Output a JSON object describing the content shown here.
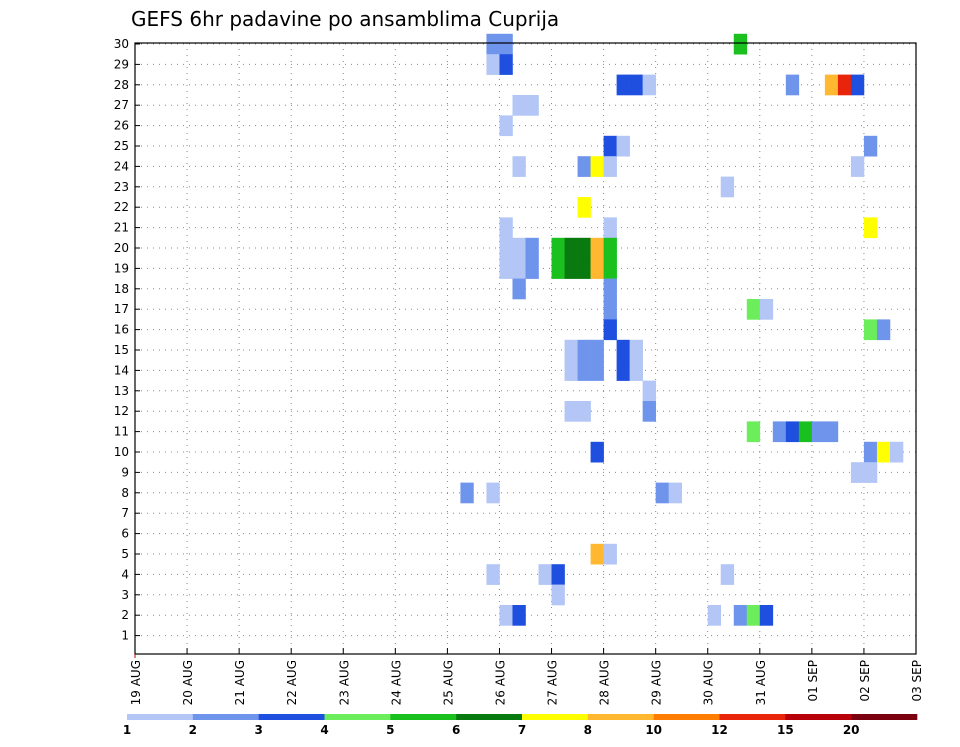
{
  "chart_data": {
    "type": "heatmap",
    "title": "GEFS 6hr padavine po ansamblima Cuprija",
    "xlabel": "",
    "ylabel": "",
    "x_tick_labels": [
      "19 AUG",
      "20 AUG",
      "21 AUG",
      "22 AUG",
      "23 AUG",
      "24 AUG",
      "25 AUG",
      "26 AUG",
      "27 AUG",
      "28 AUG",
      "29 AUG",
      "30 AUG",
      "31 AUG",
      "01 SEP",
      "02 SEP",
      "03 SEP"
    ],
    "y_tick_labels": [
      "1",
      "2",
      "3",
      "4",
      "5",
      "6",
      "7",
      "8",
      "9",
      "10",
      "11",
      "12",
      "13",
      "14",
      "15",
      "16",
      "17",
      "18",
      "19",
      "20",
      "21",
      "22",
      "23",
      "24",
      "25",
      "26",
      "27",
      "28",
      "29",
      "30"
    ],
    "x_range_days": [
      0,
      15
    ],
    "y_range": [
      0.5,
      30.5
    ],
    "time_step_days": 0.25,
    "grid": true,
    "color_scale": {
      "labels": [
        "1",
        "2",
        "3",
        "4",
        "5",
        "6",
        "7",
        "8",
        "10",
        "12",
        "15",
        "20"
      ],
      "colors": [
        "#b3c6f5",
        "#6f94ec",
        "#1f4fdf",
        "#6ced5b",
        "#19c01e",
        "#087a10",
        "#ffff00",
        "#ffb830",
        "#ff7d00",
        "#e8250b",
        "#b8000b",
        "#7a0010"
      ]
    },
    "cells": [
      {
        "day": "25.75",
        "member": 30,
        "color": "#6f94ec"
      },
      {
        "day": "26.00",
        "member": 30,
        "color": "#6f94ec"
      },
      {
        "day": "30.50",
        "member": 30,
        "color": "#19c01e"
      },
      {
        "day": "25.75",
        "member": 29,
        "color": "#b3c6f5"
      },
      {
        "day": "26.00",
        "member": 29,
        "color": "#1f4fdf"
      },
      {
        "day": "28.25",
        "member": 28,
        "color": "#1f4fdf"
      },
      {
        "day": "28.50",
        "member": 28,
        "color": "#1f4fdf"
      },
      {
        "day": "28.75",
        "member": 28,
        "color": "#b3c6f5"
      },
      {
        "day": "31.50",
        "member": 28,
        "color": "#6f94ec"
      },
      {
        "day": "32.25",
        "member": 28,
        "color": "#ffb830"
      },
      {
        "day": "32.50",
        "member": 28,
        "color": "#e8250b"
      },
      {
        "day": "32.75",
        "member": 28,
        "color": "#1f4fdf"
      },
      {
        "day": "26.25",
        "member": 27,
        "color": "#b3c6f5"
      },
      {
        "day": "26.50",
        "member": 27,
        "color": "#b3c6f5"
      },
      {
        "day": "26.00",
        "member": 26,
        "color": "#b3c6f5"
      },
      {
        "day": "28.00",
        "member": 25,
        "color": "#1f4fdf"
      },
      {
        "day": "28.25",
        "member": 25,
        "color": "#b3c6f5"
      },
      {
        "day": "33.00",
        "member": 25,
        "color": "#6f94ec"
      },
      {
        "day": "26.25",
        "member": 24,
        "color": "#b3c6f5"
      },
      {
        "day": "27.50",
        "member": 24,
        "color": "#6f94ec"
      },
      {
        "day": "27.75",
        "member": 24,
        "color": "#ffff00"
      },
      {
        "day": "28.00",
        "member": 24,
        "color": "#b3c6f5"
      },
      {
        "day": "32.75",
        "member": 24,
        "color": "#b3c6f5"
      },
      {
        "day": "30.25",
        "member": 23,
        "color": "#b3c6f5"
      },
      {
        "day": "27.50",
        "member": 22,
        "color": "#ffff00"
      },
      {
        "day": "26.00",
        "member": 21,
        "color": "#b3c6f5"
      },
      {
        "day": "28.00",
        "member": 21,
        "color": "#b3c6f5"
      },
      {
        "day": "33.00",
        "member": 21,
        "color": "#ffff00"
      },
      {
        "day": "26.00",
        "member": 20,
        "color": "#b3c6f5"
      },
      {
        "day": "26.25",
        "member": 20,
        "color": "#b3c6f5"
      },
      {
        "day": "26.50",
        "member": 20,
        "color": "#6f94ec"
      },
      {
        "day": "27.00",
        "member": 20,
        "color": "#19c01e"
      },
      {
        "day": "27.25",
        "member": 20,
        "color": "#087a10"
      },
      {
        "day": "27.50",
        "member": 20,
        "color": "#087a10"
      },
      {
        "day": "27.75",
        "member": 20,
        "color": "#ffb830"
      },
      {
        "day": "28.00",
        "member": 20,
        "color": "#19c01e"
      },
      {
        "day": "26.00",
        "member": 19,
        "color": "#b3c6f5"
      },
      {
        "day": "26.25",
        "member": 19,
        "color": "#b3c6f5"
      },
      {
        "day": "26.50",
        "member": 19,
        "color": "#6f94ec"
      },
      {
        "day": "27.00",
        "member": 19,
        "color": "#19c01e"
      },
      {
        "day": "27.25",
        "member": 19,
        "color": "#087a10"
      },
      {
        "day": "27.50",
        "member": 19,
        "color": "#087a10"
      },
      {
        "day": "27.75",
        "member": 19,
        "color": "#ffb830"
      },
      {
        "day": "28.00",
        "member": 19,
        "color": "#19c01e"
      },
      {
        "day": "26.25",
        "member": 18,
        "color": "#6f94ec"
      },
      {
        "day": "28.00",
        "member": 18,
        "color": "#6f94ec"
      },
      {
        "day": "28.00",
        "member": 17,
        "color": "#6f94ec"
      },
      {
        "day": "30.75",
        "member": 17,
        "color": "#6ced5b"
      },
      {
        "day": "31.00",
        "member": 17,
        "color": "#b3c6f5"
      },
      {
        "day": "28.00",
        "member": 16,
        "color": "#1f4fdf"
      },
      {
        "day": "33.00",
        "member": 16,
        "color": "#6ced5b"
      },
      {
        "day": "33.25",
        "member": 16,
        "color": "#6f94ec"
      },
      {
        "day": "27.25",
        "member": 15,
        "color": "#b3c6f5"
      },
      {
        "day": "27.50",
        "member": 15,
        "color": "#6f94ec"
      },
      {
        "day": "27.75",
        "member": 15,
        "color": "#6f94ec"
      },
      {
        "day": "28.25",
        "member": 15,
        "color": "#1f4fdf"
      },
      {
        "day": "28.50",
        "member": 15,
        "color": "#b3c6f5"
      },
      {
        "day": "27.25",
        "member": 14,
        "color": "#b3c6f5"
      },
      {
        "day": "27.50",
        "member": 14,
        "color": "#6f94ec"
      },
      {
        "day": "27.75",
        "member": 14,
        "color": "#6f94ec"
      },
      {
        "day": "28.25",
        "member": 14,
        "color": "#1f4fdf"
      },
      {
        "day": "28.50",
        "member": 14,
        "color": "#b3c6f5"
      },
      {
        "day": "28.75",
        "member": 13,
        "color": "#b3c6f5"
      },
      {
        "day": "27.25",
        "member": 12,
        "color": "#b3c6f5"
      },
      {
        "day": "27.50",
        "member": 12,
        "color": "#b3c6f5"
      },
      {
        "day": "28.75",
        "member": 12,
        "color": "#6f94ec"
      },
      {
        "day": "30.75",
        "member": 11,
        "color": "#6ced5b"
      },
      {
        "day": "31.25",
        "member": 11,
        "color": "#6f94ec"
      },
      {
        "day": "31.50",
        "member": 11,
        "color": "#1f4fdf"
      },
      {
        "day": "31.75",
        "member": 11,
        "color": "#19c01e"
      },
      {
        "day": "32.00",
        "member": 11,
        "color": "#6f94ec"
      },
      {
        "day": "32.25",
        "member": 11,
        "color": "#6f94ec"
      },
      {
        "day": "27.75",
        "member": 10,
        "color": "#1f4fdf"
      },
      {
        "day": "33.00",
        "member": 10,
        "color": "#6f94ec"
      },
      {
        "day": "33.25",
        "member": 10,
        "color": "#ffff00"
      },
      {
        "day": "33.50",
        "member": 10,
        "color": "#b3c6f5"
      },
      {
        "day": "32.75",
        "member": 9,
        "color": "#b3c6f5"
      },
      {
        "day": "33.00",
        "member": 9,
        "color": "#b3c6f5"
      },
      {
        "day": "25.25",
        "member": 8,
        "color": "#6f94ec"
      },
      {
        "day": "25.75",
        "member": 8,
        "color": "#b3c6f5"
      },
      {
        "day": "29.00",
        "member": 8,
        "color": "#6f94ec"
      },
      {
        "day": "29.25",
        "member": 8,
        "color": "#b3c6f5"
      },
      {
        "day": "27.75",
        "member": 5,
        "color": "#ffb830"
      },
      {
        "day": "28.00",
        "member": 5,
        "color": "#b3c6f5"
      },
      {
        "day": "25.75",
        "member": 4,
        "color": "#b3c6f5"
      },
      {
        "day": "26.75",
        "member": 4,
        "color": "#b3c6f5"
      },
      {
        "day": "27.00",
        "member": 4,
        "color": "#1f4fdf"
      },
      {
        "day": "30.25",
        "member": 4,
        "color": "#b3c6f5"
      },
      {
        "day": "27.00",
        "member": 3,
        "color": "#b3c6f5"
      },
      {
        "day": "26.00",
        "member": 2,
        "color": "#b3c6f5"
      },
      {
        "day": "26.25",
        "member": 2,
        "color": "#1f4fdf"
      },
      {
        "day": "30.00",
        "member": 2,
        "color": "#b3c6f5"
      },
      {
        "day": "30.50",
        "member": 2,
        "color": "#6f94ec"
      },
      {
        "day": "30.75",
        "member": 2,
        "color": "#6ced5b"
      },
      {
        "day": "31.00",
        "member": 2,
        "color": "#1f4fdf"
      }
    ]
  }
}
